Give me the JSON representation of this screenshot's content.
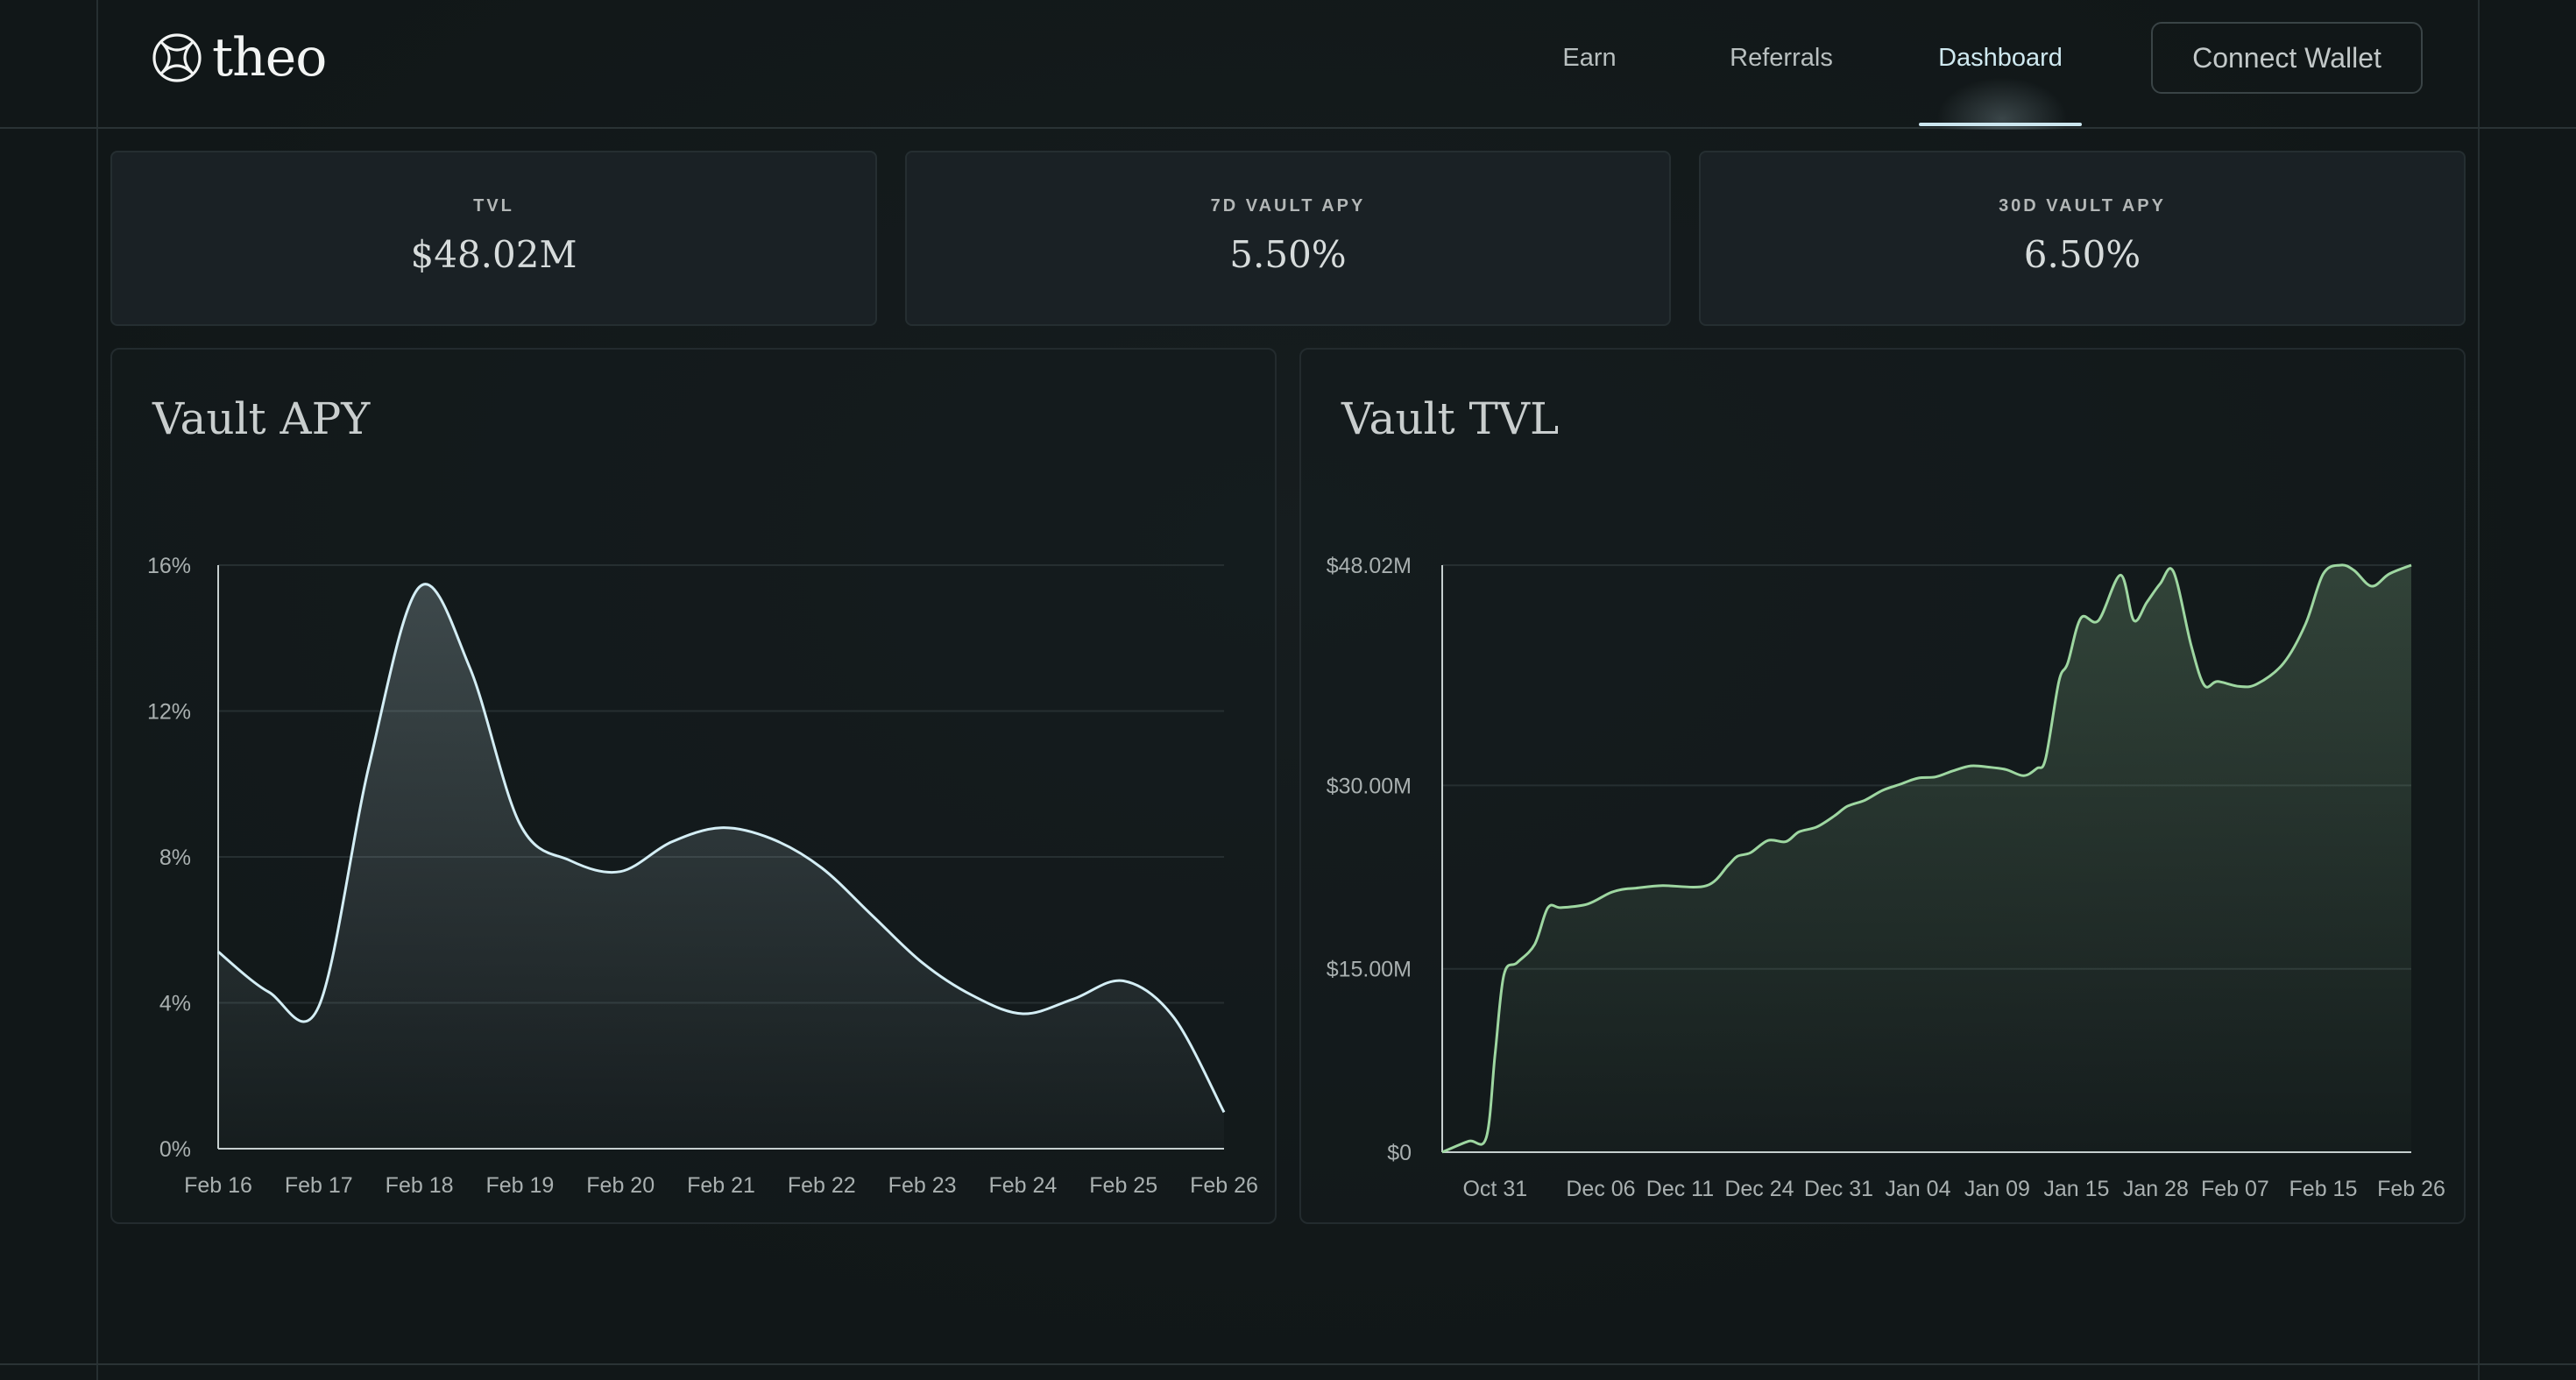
{
  "brand": {
    "name": "theo",
    "logo_icon": "theo-logo-icon"
  },
  "nav": {
    "items": [
      {
        "label": "Earn",
        "active": false
      },
      {
        "label": "Referrals",
        "active": false
      },
      {
        "label": "Dashboard",
        "active": true
      }
    ],
    "connect_label": "Connect Wallet"
  },
  "stats": [
    {
      "label": "TVL",
      "value": "$48.02M"
    },
    {
      "label": "7D VAULT APY",
      "value": "5.50%"
    },
    {
      "label": "30D VAULT APY",
      "value": "6.50%"
    }
  ],
  "colors": {
    "apy_line": "#d4eef5",
    "tvl_line": "#9ed7a1",
    "background": "#111718"
  },
  "chart_data": [
    {
      "type": "area",
      "title": "Vault APY",
      "x_tick_labels": [
        "Feb 16",
        "Feb 17",
        "Feb 18",
        "Feb 19",
        "Feb 20",
        "Feb 21",
        "Feb 22",
        "Feb 23",
        "Feb 24",
        "Feb 25",
        "Feb 26"
      ],
      "y_tick_labels": [
        "0%",
        "4%",
        "8%",
        "12%",
        "16%"
      ],
      "ylim": [
        0,
        16
      ],
      "grid": true,
      "x": [
        0,
        0.5,
        1,
        1.5,
        2,
        2.5,
        3,
        3.5,
        4,
        4.5,
        5,
        5.5,
        6,
        6.5,
        7,
        7.5,
        8,
        8.5,
        9,
        9.5,
        10
      ],
      "values": [
        5.4,
        4.3,
        3.9,
        10.5,
        15.4,
        13.2,
        8.9,
        7.9,
        7.6,
        8.4,
        8.8,
        8.5,
        7.7,
        6.4,
        5.1,
        4.2,
        3.7,
        4.1,
        4.6,
        3.6,
        1.0
      ]
    },
    {
      "type": "area",
      "title": "Vault TVL",
      "x_tick_labels": [
        "Oct 31",
        "Dec 06",
        "Dec 11",
        "Dec 24",
        "Dec 31",
        "Jan 04",
        "Jan 09",
        "Jan 15",
        "Jan 28",
        "Feb 07",
        "Feb 15",
        "Feb 26"
      ],
      "y_tick_labels": [
        "$0",
        "$15.00M",
        "$30.00M",
        "$48.02M"
      ],
      "ylim": [
        0,
        48.02
      ],
      "grid": true,
      "x": [
        0,
        0.3,
        0.5,
        0.6,
        0.7,
        0.85,
        1.05,
        1.2,
        1.35,
        1.65,
        1.9,
        2.05,
        2.2,
        2.5,
        3.0,
        3.25,
        3.35,
        3.5,
        3.7,
        3.9,
        4.05,
        4.25,
        4.45,
        4.6,
        4.8,
        5.0,
        5.2,
        5.4,
        5.6,
        5.8,
        6.0,
        6.2,
        6.4,
        6.6,
        6.75,
        6.85,
        7.0,
        7.1,
        7.25,
        7.45,
        7.7,
        7.85,
        8.0,
        8.15,
        8.3,
        8.5,
        8.65,
        8.8,
        9.05,
        9.25,
        9.55,
        9.8,
        10.0,
        10.2,
        10.35,
        10.55,
        10.75,
        11.0
      ],
      "values": [
        0,
        0.9,
        1.2,
        8.0,
        14.5,
        15.5,
        17.0,
        20.0,
        20.0,
        20.3,
        21.2,
        21.5,
        21.6,
        21.8,
        21.8,
        23.5,
        24.2,
        24.5,
        25.5,
        25.4,
        26.2,
        26.6,
        27.5,
        28.3,
        28.8,
        29.6,
        30.1,
        30.6,
        30.7,
        31.2,
        31.6,
        31.5,
        31.3,
        30.8,
        31.4,
        32.2,
        38.5,
        40.0,
        43.7,
        43.5,
        47.2,
        43.5,
        45.0,
        46.5,
        47.5,
        41.5,
        38.2,
        38.5,
        38.1,
        38.3,
        40.0,
        43.2,
        47.3,
        48.02,
        47.6,
        46.3,
        47.3,
        48.02
      ]
    }
  ]
}
